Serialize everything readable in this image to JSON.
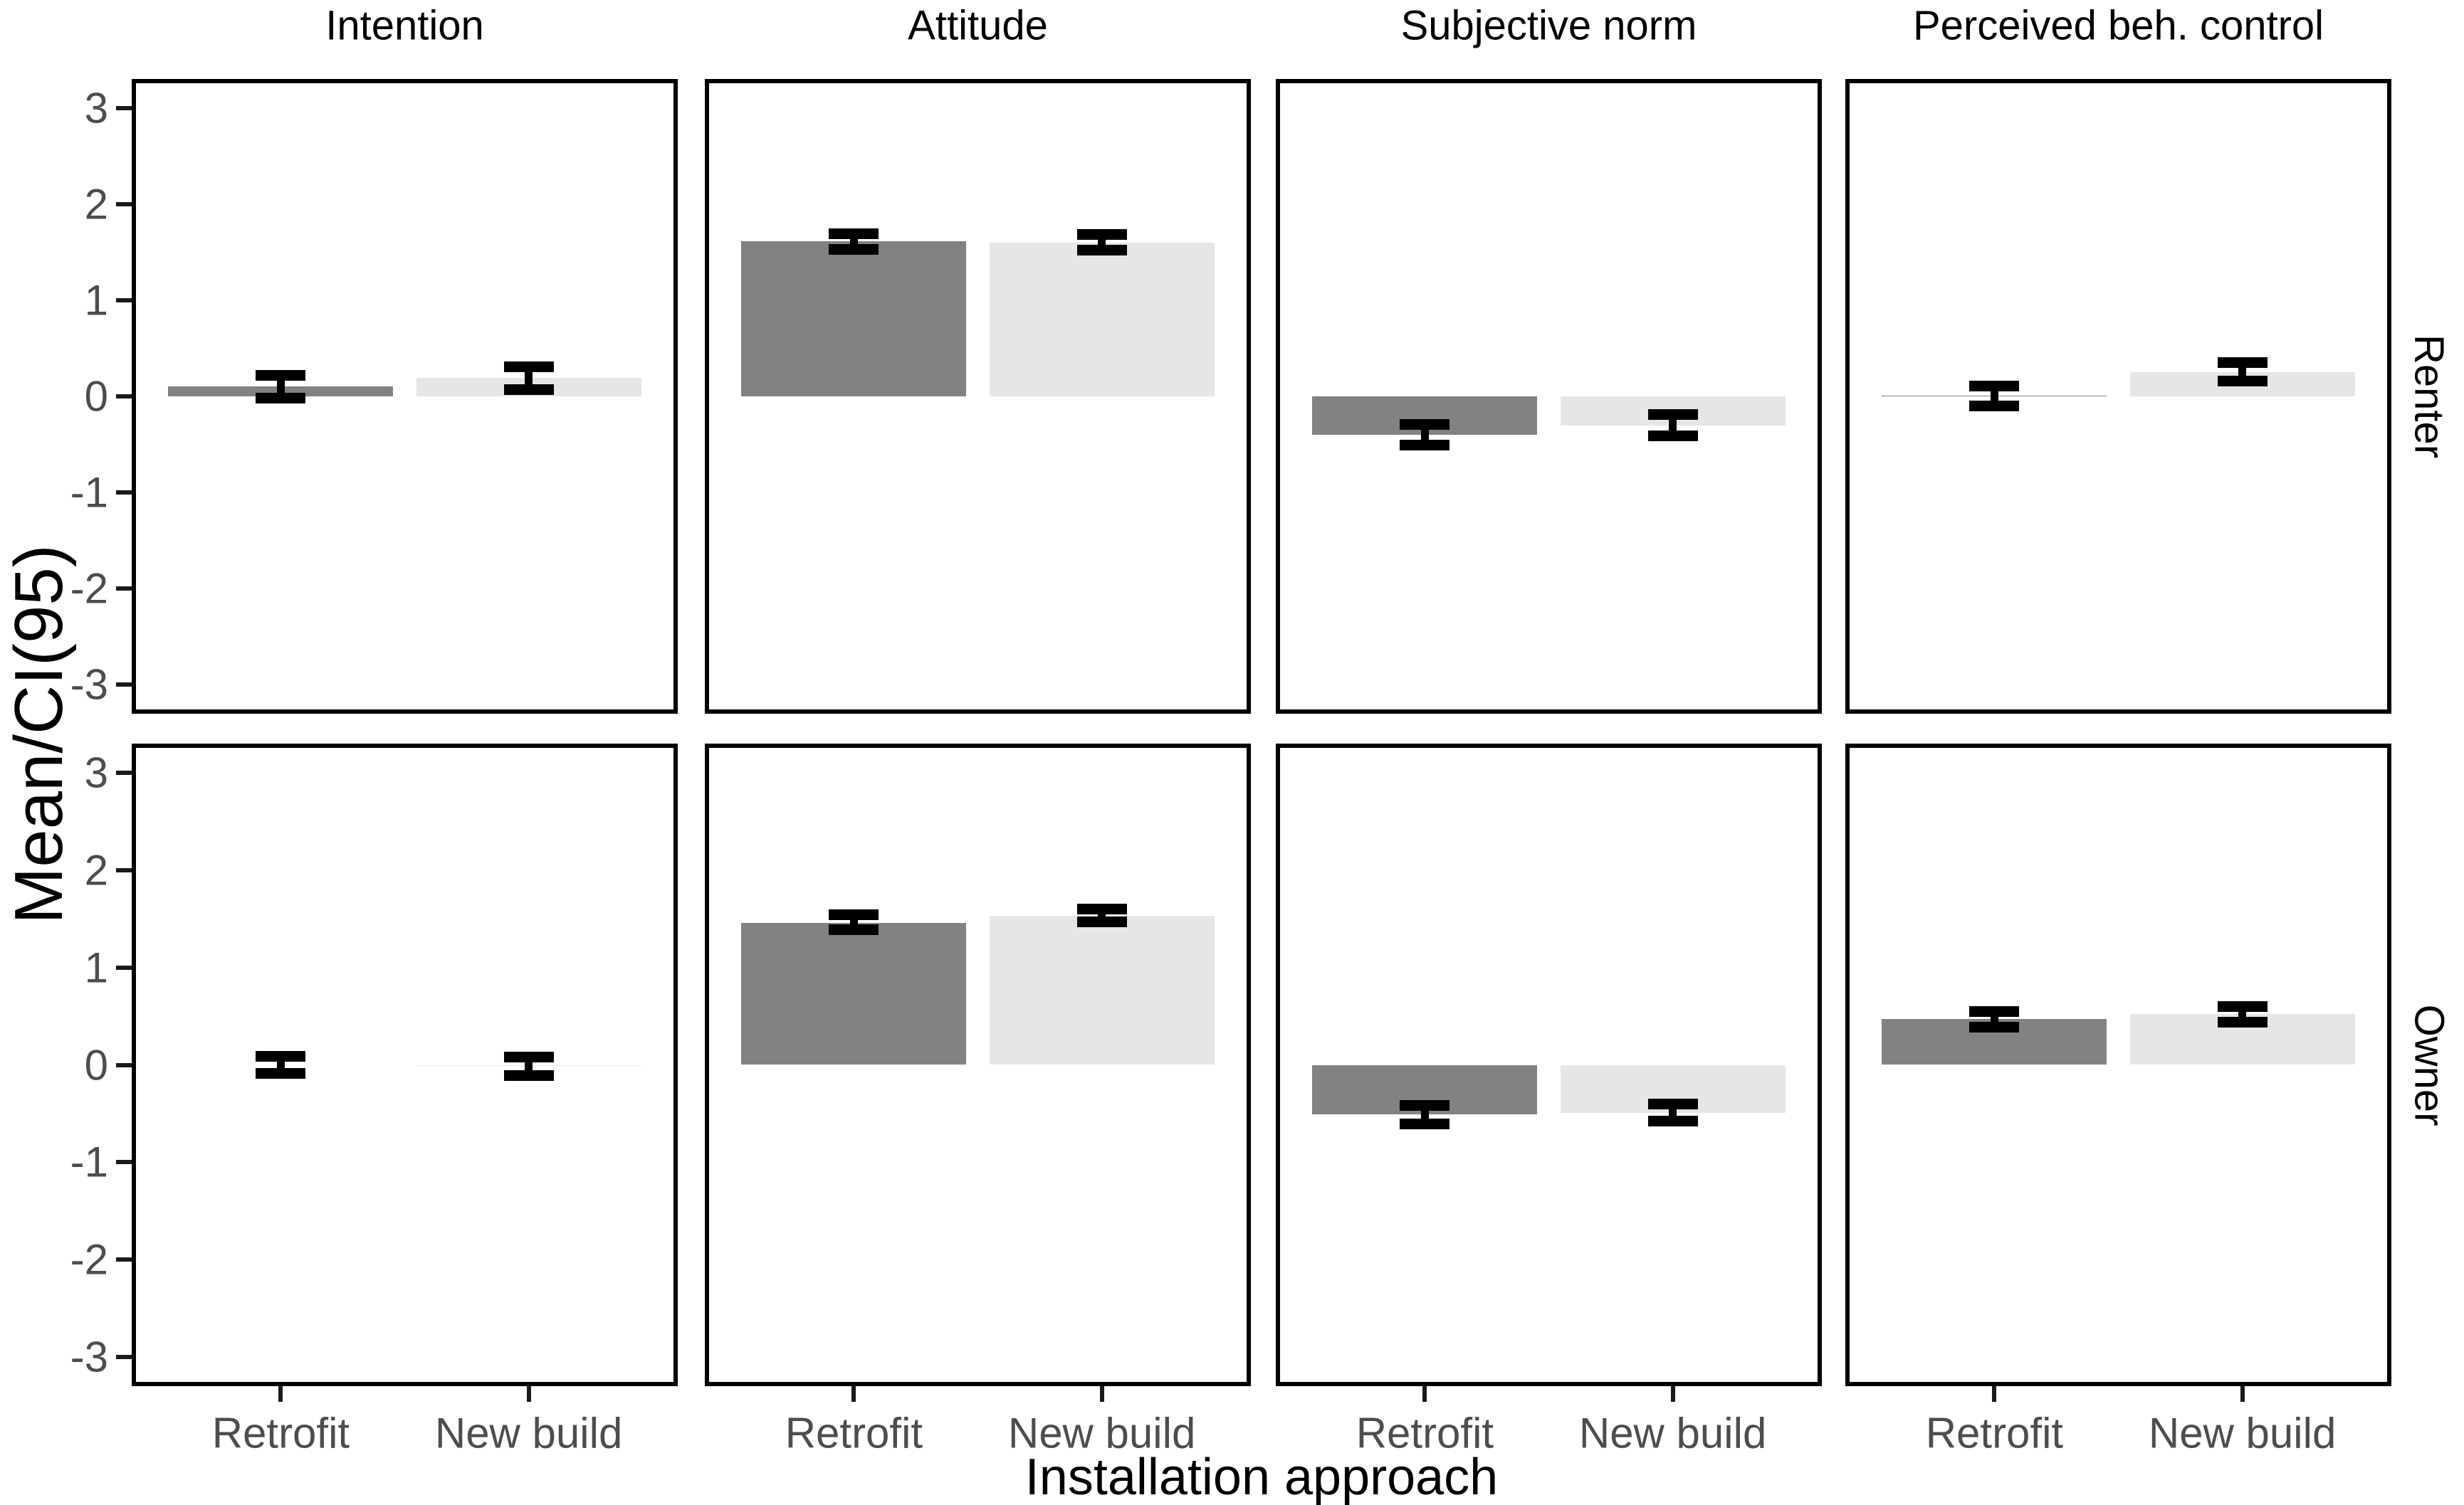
{
  "chart_data": {
    "type": "bar",
    "title": "",
    "xlabel": "Installation approach",
    "ylabel": "Mean/CI(95)",
    "facet_columns": [
      "Intention",
      "Attitude",
      "Subjective norm",
      "Perceived beh. control"
    ],
    "facet_rows": [
      "Renter",
      "Owner"
    ],
    "categories": [
      "Retrofit",
      "New build"
    ],
    "y_ticks": [
      3,
      2,
      1,
      0,
      -1,
      -2,
      -3
    ],
    "ylim": [
      -3.3,
      3.3
    ],
    "grid": false,
    "legend": "none",
    "error_bars": "95% CI",
    "bar_colors": {
      "Retrofit": "#828282",
      "New build": "#e6e6e6"
    },
    "axis_color": "#000000",
    "tick_label_color": "#4d4d4d",
    "panels": [
      {
        "row": "Renter",
        "column": "Intention",
        "bars": [
          {
            "category": "Retrofit",
            "mean": 0.1,
            "ci_low": -0.02,
            "ci_high": 0.22
          },
          {
            "category": "New build",
            "mean": 0.19,
            "ci_low": 0.07,
            "ci_high": 0.31
          }
        ]
      },
      {
        "row": "Renter",
        "column": "Attitude",
        "bars": [
          {
            "category": "Retrofit",
            "mean": 1.61,
            "ci_low": 1.53,
            "ci_high": 1.69
          },
          {
            "category": "New build",
            "mean": 1.6,
            "ci_low": 1.52,
            "ci_high": 1.68
          }
        ]
      },
      {
        "row": "Renter",
        "column": "Subjective norm",
        "bars": [
          {
            "category": "Retrofit",
            "mean": -0.4,
            "ci_low": -0.51,
            "ci_high": -0.29
          },
          {
            "category": "New build",
            "mean": -0.3,
            "ci_low": -0.41,
            "ci_high": -0.19
          }
        ]
      },
      {
        "row": "Renter",
        "column": "Perceived beh. control",
        "bars": [
          {
            "category": "Retrofit",
            "mean": 0.01,
            "ci_low": -0.1,
            "ci_high": 0.11
          },
          {
            "category": "New build",
            "mean": 0.25,
            "ci_low": 0.16,
            "ci_high": 0.35
          }
        ]
      },
      {
        "row": "Owner",
        "column": "Intention",
        "bars": [
          {
            "category": "Retrofit",
            "mean": 0.0,
            "ci_low": -0.09,
            "ci_high": 0.09
          },
          {
            "category": "New build",
            "mean": -0.01,
            "ci_low": -0.11,
            "ci_high": 0.08
          }
        ]
      },
      {
        "row": "Owner",
        "column": "Attitude",
        "bars": [
          {
            "category": "Retrofit",
            "mean": 1.46,
            "ci_low": 1.39,
            "ci_high": 1.54
          },
          {
            "category": "New build",
            "mean": 1.53,
            "ci_low": 1.47,
            "ci_high": 1.6
          }
        ]
      },
      {
        "row": "Owner",
        "column": "Subjective norm",
        "bars": [
          {
            "category": "Retrofit",
            "mean": -0.51,
            "ci_low": -0.61,
            "ci_high": -0.42
          },
          {
            "category": "New build",
            "mean": -0.49,
            "ci_low": -0.58,
            "ci_high": -0.4
          }
        ]
      },
      {
        "row": "Owner",
        "column": "Perceived beh. control",
        "bars": [
          {
            "category": "Retrofit",
            "mean": 0.47,
            "ci_low": 0.39,
            "ci_high": 0.55
          },
          {
            "category": "New build",
            "mean": 0.52,
            "ci_low": 0.44,
            "ci_high": 0.6
          }
        ]
      }
    ]
  }
}
